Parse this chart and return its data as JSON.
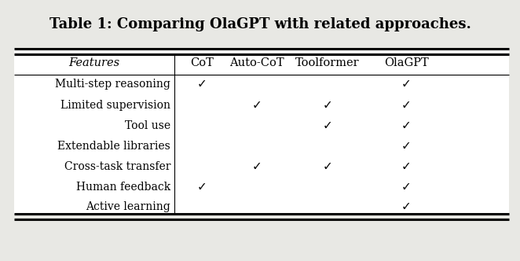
{
  "title": "Table 1: Comparing OlaGPT with related approaches.",
  "title_fontsize": 13,
  "columns": [
    "Features",
    "CoT",
    "Auto-CoT",
    "Toolformer",
    "OlaGPT"
  ],
  "rows": [
    "Multi-step reasoning",
    "Limited supervision",
    "Tool use",
    "Extendable libraries",
    "Cross-task transfer",
    "Human feedback",
    "Active learning"
  ],
  "checks": [
    [
      true,
      true,
      false,
      false,
      true
    ],
    [
      false,
      false,
      true,
      true,
      true
    ],
    [
      false,
      false,
      false,
      true,
      true
    ],
    [
      false,
      false,
      false,
      false,
      true
    ],
    [
      false,
      false,
      true,
      true,
      true
    ],
    [
      false,
      true,
      false,
      false,
      true
    ],
    [
      false,
      false,
      false,
      false,
      true
    ]
  ],
  "bg_color": "#e8e8e4",
  "text_color": "#000000",
  "check_symbol": "✓"
}
